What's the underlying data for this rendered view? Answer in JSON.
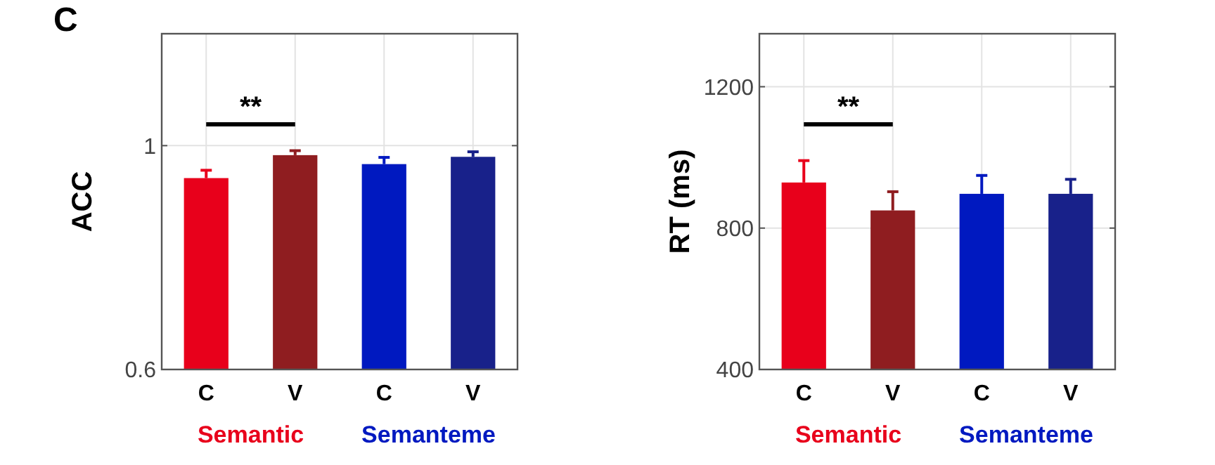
{
  "chart_data": [
    {
      "type": "bar",
      "title": "C",
      "ylabel": "ACC",
      "categories": [
        "C",
        "V",
        "C",
        "V"
      ],
      "values": [
        0.942,
        0.983,
        0.967,
        0.98
      ],
      "errors": [
        0.014,
        0.008,
        0.012,
        0.009
      ],
      "colors": [
        "#e8001b",
        "#8f1d20",
        "#0019c0",
        "#18218a"
      ],
      "ylim": [
        0.6,
        1.2
      ],
      "yticks": [
        0.6,
        1
      ],
      "grid": true,
      "annotations": [
        "**",
        "Semantic",
        "Semanteme"
      ]
    },
    {
      "type": "bar",
      "ylabel": "RT (ms)",
      "categories": [
        "C",
        "V",
        "C",
        "V"
      ],
      "values": [
        929,
        850,
        897,
        897
      ],
      "errors": [
        62,
        53,
        52,
        41
      ],
      "colors": [
        "#e8001b",
        "#8f1d20",
        "#0019c0",
        "#18218a"
      ],
      "ylim": [
        400,
        1350
      ],
      "yticks": [
        400,
        800,
        1200
      ],
      "grid": true,
      "annotations": [
        "**",
        "Semantic",
        "Semanteme"
      ]
    }
  ]
}
